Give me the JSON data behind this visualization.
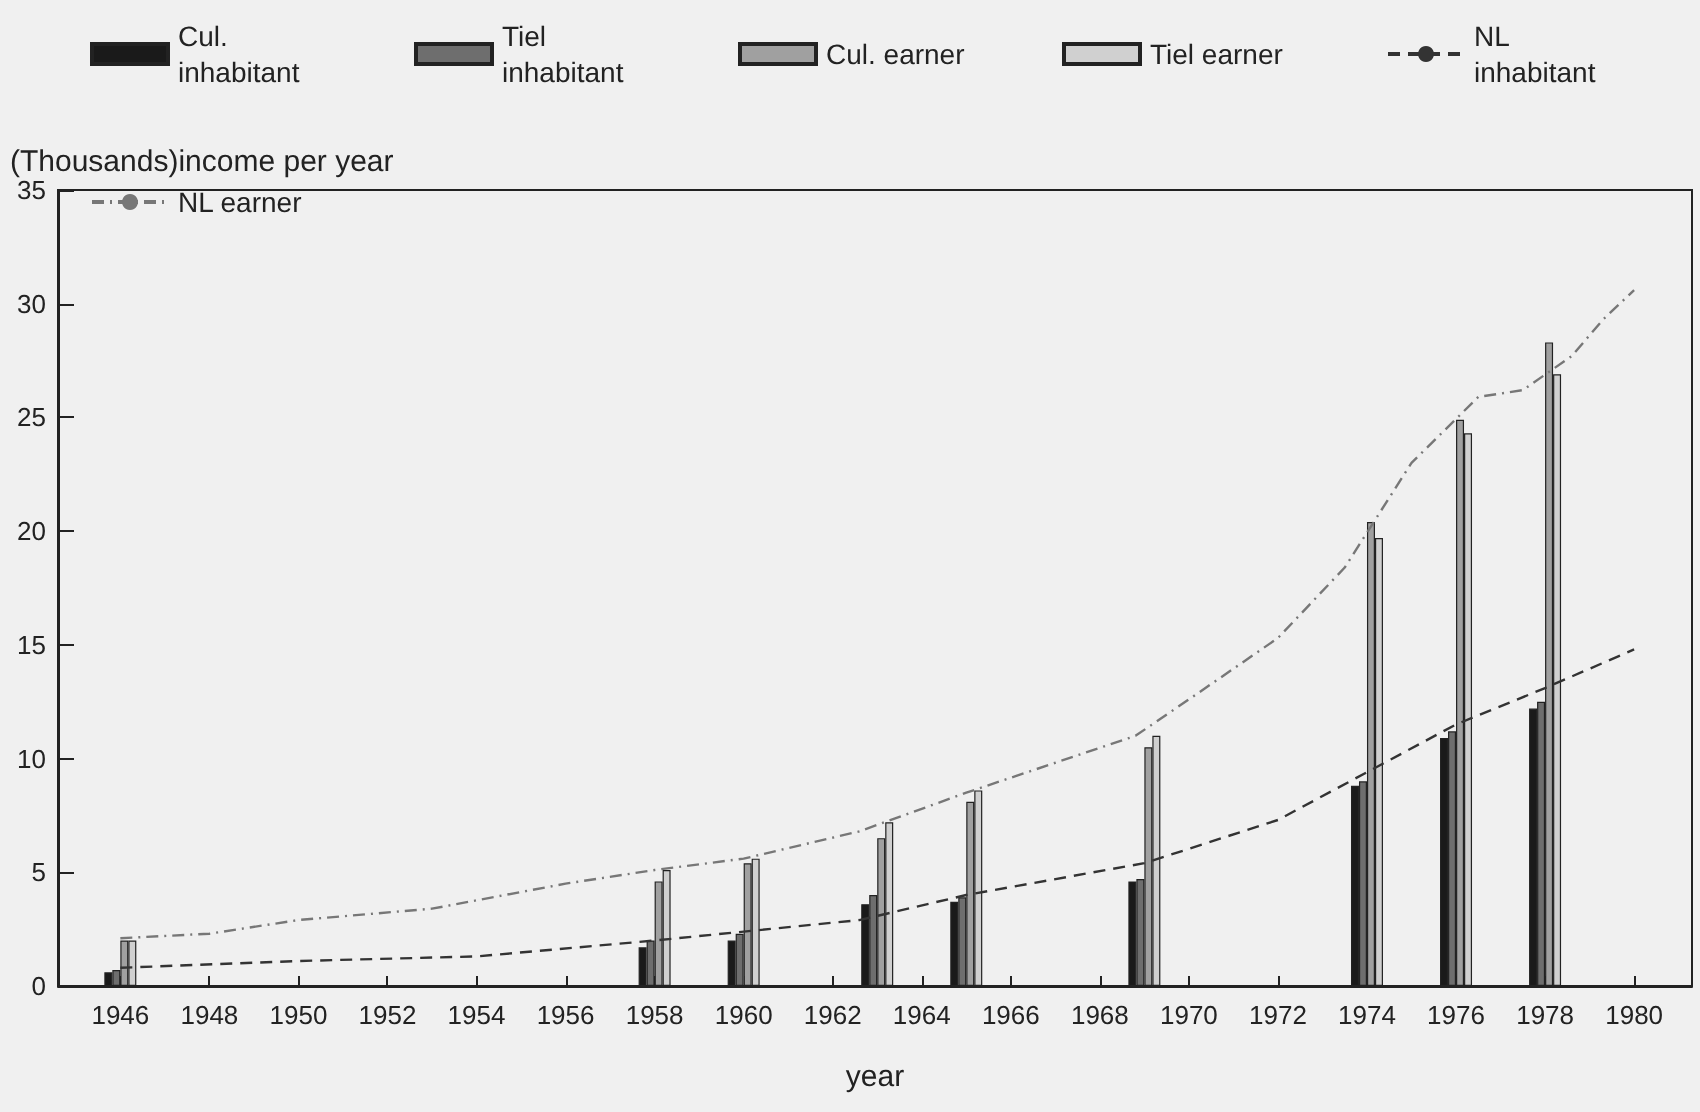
{
  "chart_data": {
    "type": "bar",
    "xlabel": "year",
    "ylabel": "(Thousands)income per year",
    "x": [
      1946,
      1958,
      1960,
      1963,
      1965,
      1969,
      1974,
      1976,
      1978
    ],
    "series": [
      {
        "name": "Cul. inhabitant",
        "color": "#1a1a1a",
        "values": [
          0.6,
          1.7,
          2.0,
          3.6,
          3.7,
          4.6,
          8.8,
          10.9,
          12.2
        ]
      },
      {
        "name": "Tiel inhabitant",
        "color": "#6e6e6e",
        "values": [
          0.7,
          2.0,
          2.3,
          4.0,
          3.9,
          4.7,
          9.0,
          11.2,
          12.5
        ]
      },
      {
        "name": "Cul. earner",
        "color": "#a0a0a0",
        "values": [
          2.0,
          4.6,
          5.4,
          6.5,
          8.1,
          10.5,
          20.4,
          24.9,
          28.3
        ]
      },
      {
        "name": "Tiel earner",
        "color": "#d0d0d0",
        "values": [
          2.0,
          5.1,
          5.6,
          7.2,
          8.6,
          11.0,
          19.7,
          24.3,
          26.9
        ]
      },
      {
        "name": "NL inhabitant",
        "type": "line",
        "line_style": "dashed",
        "color": "#333333",
        "x": [
          1946,
          1950,
          1954,
          1958,
          1962.6,
          1965,
          1969,
          1972,
          1974,
          1976,
          1978,
          1980
        ],
        "values": [
          0.8,
          1.1,
          1.3,
          2.0,
          2.9,
          4.0,
          5.4,
          7.3,
          9.4,
          11.5,
          13.1,
          14.8
        ]
      },
      {
        "name": "NL earner",
        "type": "line",
        "line_style": "dotted",
        "color": "#777777",
        "x": [
          1946,
          1948,
          1950,
          1953,
          1956,
          1958,
          1960,
          1962.6,
          1965,
          1968.8,
          1970,
          1972,
          1973.5,
          1975,
          1976.5,
          1977.5,
          1978.6,
          1979.3,
          1980
        ],
        "values": [
          2.1,
          2.3,
          2.9,
          3.4,
          4.5,
          5.1,
          5.6,
          6.8,
          8.5,
          11.0,
          12.6,
          15.3,
          18.4,
          23.0,
          25.9,
          26.2,
          27.7,
          29.3,
          30.6
        ]
      }
    ],
    "xlim": [
      1944.6,
      1981.3
    ],
    "xticks": [
      1946,
      1948,
      1950,
      1952,
      1954,
      1956,
      1958,
      1960,
      1962,
      1964,
      1966,
      1968,
      1970,
      1972,
      1974,
      1976,
      1978,
      1980
    ],
    "ylim": [
      0,
      35
    ],
    "yticks": [
      0,
      5,
      10,
      15,
      20,
      25,
      30,
      35
    ],
    "grid": false,
    "legend": "top",
    "marker": "none"
  }
}
